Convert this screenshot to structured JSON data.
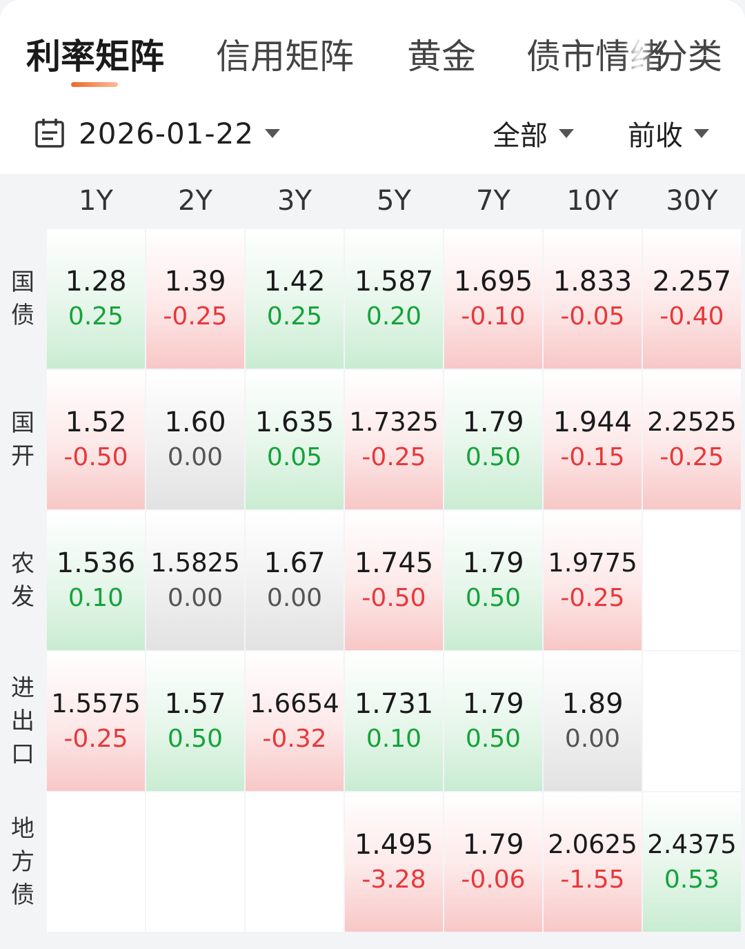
{
  "tabs": [
    {
      "label": "利率矩阵",
      "active": true
    },
    {
      "label": "信用矩阵",
      "active": false
    },
    {
      "label": "黄金",
      "active": false
    },
    {
      "label": "债市情绪",
      "active": false
    },
    {
      "label": "分类",
      "active": false
    }
  ],
  "filters": {
    "date": "2026-01-22",
    "scope": "全部",
    "price_basis": "前收"
  },
  "matrix": {
    "columns": [
      "1Y",
      "2Y",
      "3Y",
      "5Y",
      "7Y",
      "10Y",
      "30Y"
    ],
    "rows": [
      {
        "label": [
          "国",
          "债"
        ],
        "cells": [
          {
            "rate": "1.28",
            "change": "0.25",
            "trend": "down"
          },
          {
            "rate": "1.39",
            "change": "-0.25",
            "trend": "up"
          },
          {
            "rate": "1.42",
            "change": "0.25",
            "trend": "down"
          },
          {
            "rate": "1.587",
            "change": "0.20",
            "trend": "down"
          },
          {
            "rate": "1.695",
            "change": "-0.10",
            "trend": "up"
          },
          {
            "rate": "1.833",
            "change": "-0.05",
            "trend": "up"
          },
          {
            "rate": "2.257",
            "change": "-0.40",
            "trend": "up"
          }
        ]
      },
      {
        "label": [
          "国",
          "开"
        ],
        "cells": [
          {
            "rate": "1.52",
            "change": "-0.50",
            "trend": "up"
          },
          {
            "rate": "1.60",
            "change": "0.00",
            "trend": "flat"
          },
          {
            "rate": "1.635",
            "change": "0.05",
            "trend": "down"
          },
          {
            "rate": "1.7325",
            "change": "-0.25",
            "trend": "up"
          },
          {
            "rate": "1.79",
            "change": "0.50",
            "trend": "down"
          },
          {
            "rate": "1.944",
            "change": "-0.15",
            "trend": "up"
          },
          {
            "rate": "2.2525",
            "change": "-0.25",
            "trend": "up"
          }
        ]
      },
      {
        "label": [
          "农",
          "发"
        ],
        "cells": [
          {
            "rate": "1.536",
            "change": "0.10",
            "trend": "down"
          },
          {
            "rate": "1.5825",
            "change": "0.00",
            "trend": "flat"
          },
          {
            "rate": "1.67",
            "change": "0.00",
            "trend": "flat"
          },
          {
            "rate": "1.745",
            "change": "-0.50",
            "trend": "up"
          },
          {
            "rate": "1.79",
            "change": "0.50",
            "trend": "down"
          },
          {
            "rate": "1.9775",
            "change": "-0.25",
            "trend": "up"
          },
          null
        ]
      },
      {
        "label": [
          "进",
          "出",
          "口"
        ],
        "cells": [
          {
            "rate": "1.5575",
            "change": "-0.25",
            "trend": "up"
          },
          {
            "rate": "1.57",
            "change": "0.50",
            "trend": "down"
          },
          {
            "rate": "1.6654",
            "change": "-0.32",
            "trend": "up"
          },
          {
            "rate": "1.731",
            "change": "0.10",
            "trend": "down"
          },
          {
            "rate": "1.79",
            "change": "0.50",
            "trend": "down"
          },
          {
            "rate": "1.89",
            "change": "0.00",
            "trend": "flat"
          },
          null
        ]
      },
      {
        "label": [
          "地",
          "方",
          "债"
        ],
        "cells": [
          null,
          null,
          null,
          {
            "rate": "1.495",
            "change": "-3.28",
            "trend": "up"
          },
          {
            "rate": "1.79",
            "change": "-0.06",
            "trend": "up"
          },
          {
            "rate": "2.0625",
            "change": "-1.55",
            "trend": "up"
          },
          {
            "rate": "2.4375",
            "change": "0.53",
            "trend": "down"
          }
        ]
      }
    ]
  },
  "colors": {
    "accent": "#f0652a",
    "rise": "#e8373a",
    "fall": "#14a33a",
    "neutral": "#555555"
  }
}
